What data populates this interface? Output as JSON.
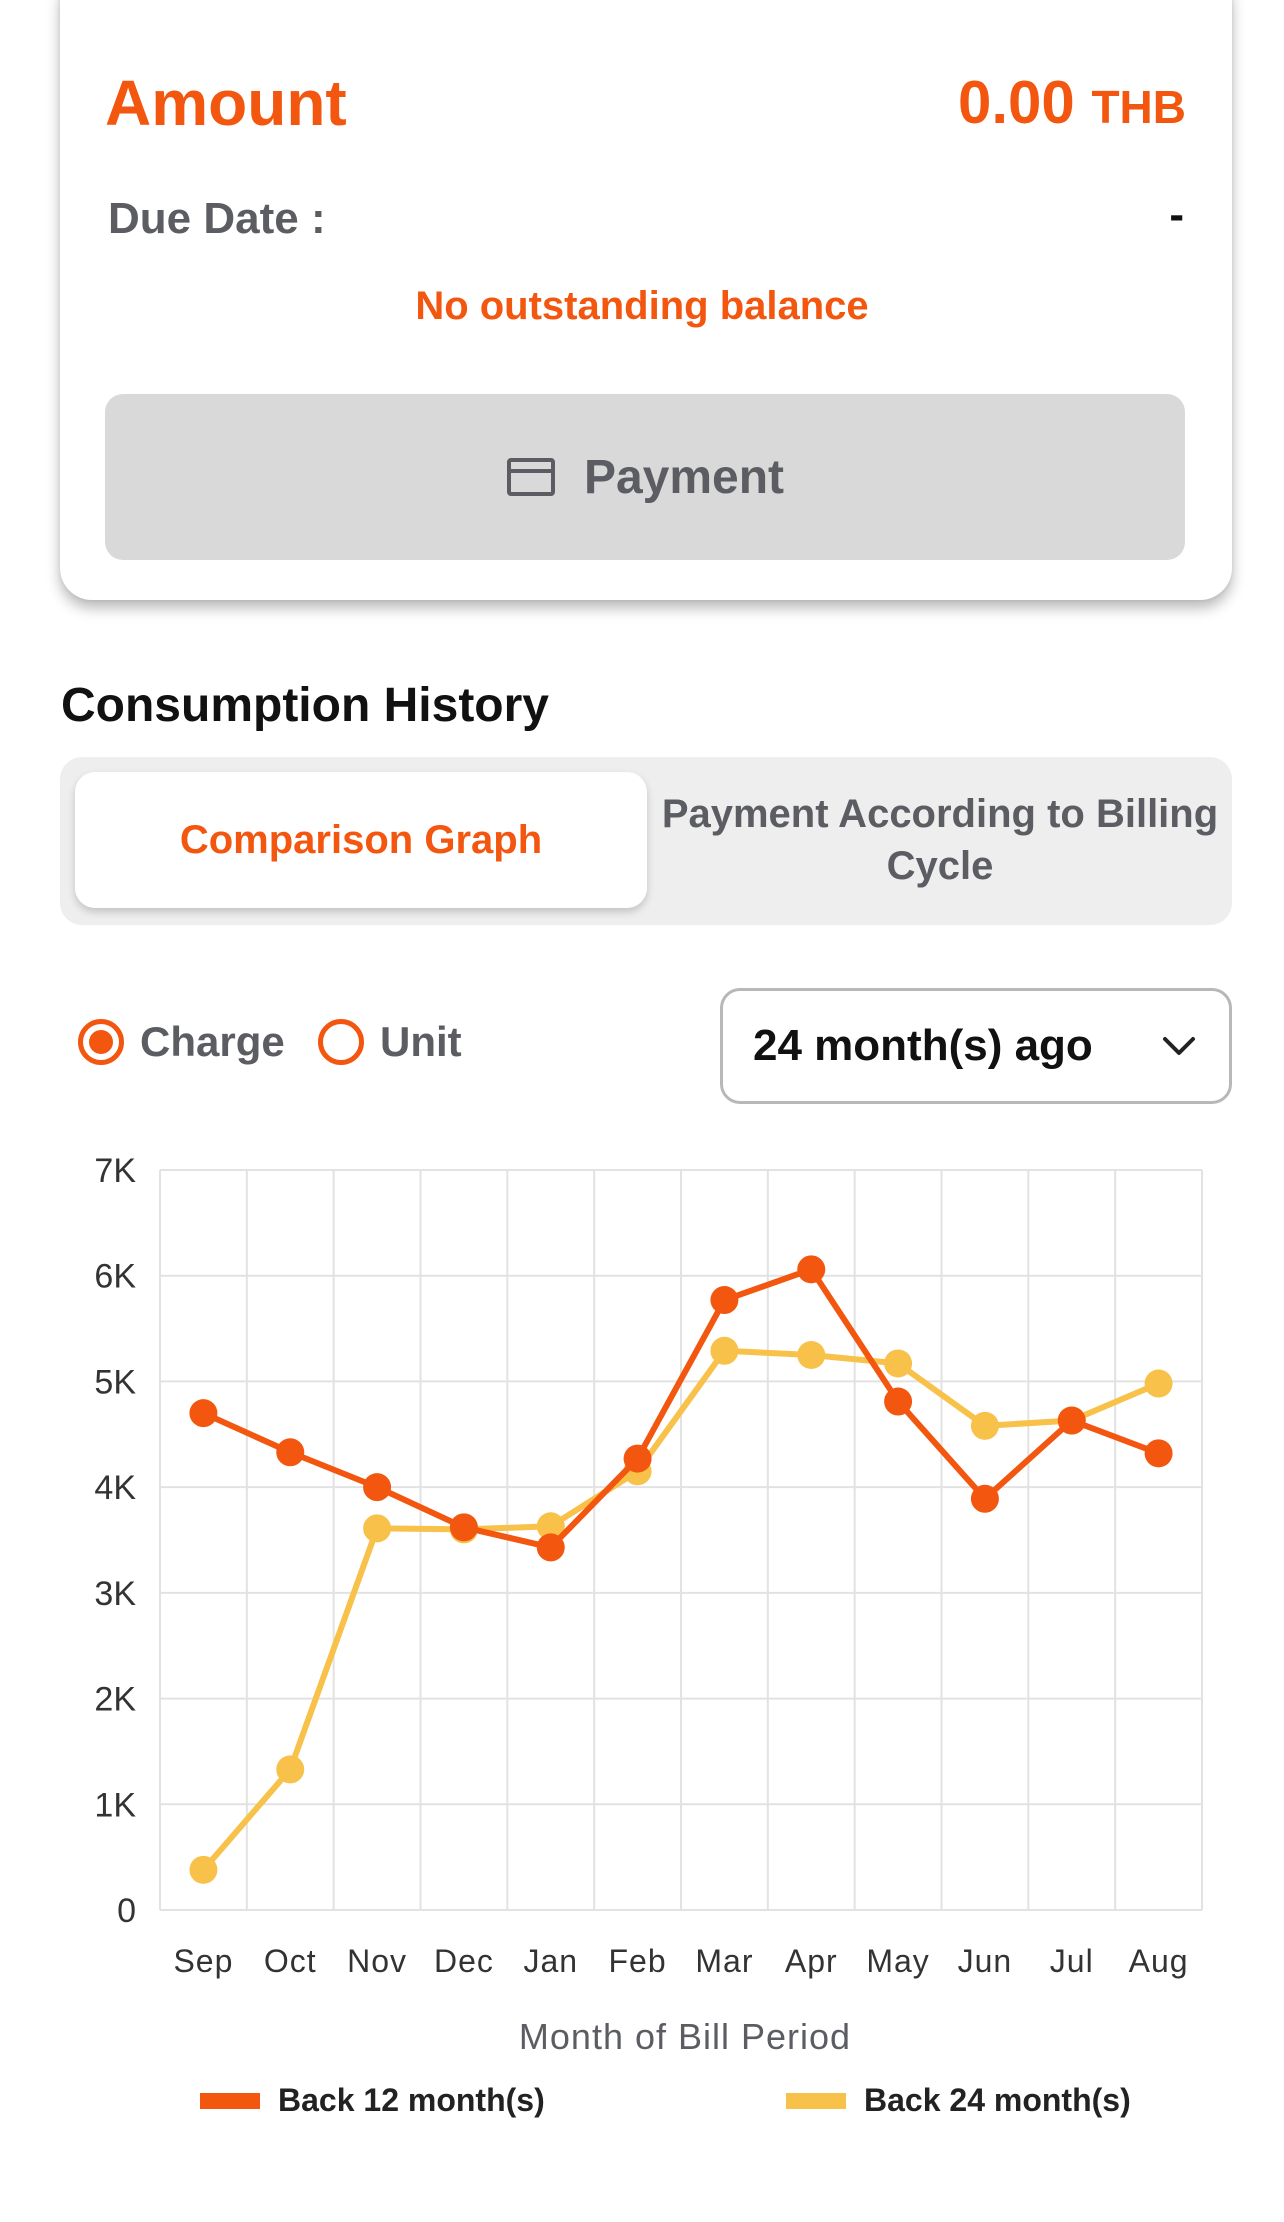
{
  "bill": {
    "amount_label": "Amount",
    "amount_value": "0.00",
    "currency": "THB",
    "due_label": "Due Date :",
    "due_value": "-",
    "status": "No outstanding balance",
    "pay_button": "Payment",
    "pay_icon": "credit-card-icon"
  },
  "history": {
    "title": "Consumption History",
    "tabs": [
      {
        "label": "Comparison Graph",
        "active": true
      },
      {
        "label": "Payment According to Billing Cycle",
        "active": false
      }
    ],
    "radio": [
      {
        "label": "Charge",
        "selected": true
      },
      {
        "label": "Unit",
        "selected": false
      }
    ],
    "period_select": "24 month(s) ago"
  },
  "colors": {
    "accent": "#f2560f",
    "series_12": "#f2560f",
    "series_24": "#f7c14a"
  },
  "chart_data": {
    "type": "line",
    "xlabel": "Month of Bill Period",
    "ylabel": "",
    "ylim": [
      0,
      7000
    ],
    "yticks": [
      "0",
      "1K",
      "2K",
      "3K",
      "4K",
      "5K",
      "6K",
      "7K"
    ],
    "categories": [
      "Sep",
      "Oct",
      "Nov",
      "Dec",
      "Jan",
      "Feb",
      "Mar",
      "Apr",
      "May",
      "Jun",
      "Jul",
      "Aug"
    ],
    "grid": true,
    "legend_position": "bottom",
    "series": [
      {
        "name": "Back 12 month(s)",
        "color": "#f2560f",
        "values": [
          4700,
          4330,
          4000,
          3620,
          3430,
          4270,
          5770,
          6060,
          4810,
          3890,
          4630,
          4320
        ]
      },
      {
        "name": "Back 24 month(s)",
        "color": "#f7c14a",
        "values": [
          380,
          1330,
          3610,
          3600,
          3630,
          4150,
          5290,
          5250,
          5170,
          4580,
          4630,
          4980
        ]
      }
    ]
  }
}
